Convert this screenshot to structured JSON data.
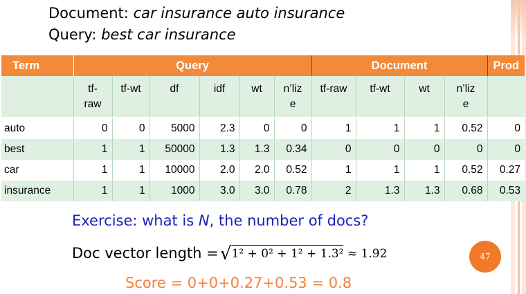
{
  "header": {
    "doc_label": "Document:",
    "doc_text": "car insurance auto insurance",
    "query_label": "Query:",
    "query_text": "best car insurance"
  },
  "table": {
    "groups": {
      "term": "Term",
      "query": "Query",
      "document": "Document",
      "prod": "Prod"
    },
    "subheaders": {
      "q_tf_raw": "tf-\nraw",
      "q_tf_wt": "tf-wt",
      "q_df": "df",
      "q_idf": "idf",
      "q_wt": "wt",
      "q_nlize": "n’liz\ne",
      "d_tf_raw": "tf-raw",
      "d_tf_wt": "tf-wt",
      "d_wt": "wt",
      "d_nlize": "n’liz\ne"
    },
    "rows": [
      {
        "term": "auto",
        "q_tf_raw": "0",
        "q_tf_wt": "0",
        "q_df": "5000",
        "q_idf": "2.3",
        "q_wt": "0",
        "q_nlize": "0",
        "d_tf_raw": "1",
        "d_tf_wt": "1",
        "d_wt": "1",
        "d_nlize": "0.52",
        "prod": "0"
      },
      {
        "term": "best",
        "q_tf_raw": "1",
        "q_tf_wt": "1",
        "q_df": "50000",
        "q_idf": "1.3",
        "q_wt": "1.3",
        "q_nlize": "0.34",
        "d_tf_raw": "0",
        "d_tf_wt": "0",
        "d_wt": "0",
        "d_nlize": "0",
        "prod": "0"
      },
      {
        "term": "car",
        "q_tf_raw": "1",
        "q_tf_wt": "1",
        "q_df": "10000",
        "q_idf": "2.0",
        "q_wt": "2.0",
        "q_nlize": "0.52",
        "d_tf_raw": "1",
        "d_tf_wt": "1",
        "d_wt": "1",
        "d_nlize": "0.52",
        "prod": "0.27"
      },
      {
        "term": "insurance",
        "q_tf_raw": "1",
        "q_tf_wt": "1",
        "q_df": "1000",
        "q_idf": "3.0",
        "q_wt": "3.0",
        "q_nlize": "0.78",
        "d_tf_raw": "2",
        "d_tf_wt": "1.3",
        "d_wt": "1.3",
        "d_nlize": "0.68",
        "prod": "0.53"
      }
    ]
  },
  "exercise": {
    "prefix": "Exercise: what is ",
    "var": "N",
    "suffix": ", the number of docs?"
  },
  "doc_vector": {
    "label": "Doc vector length =",
    "formula": "1² + 0² + 1² + 1.3²",
    "approx": "≈ 1.92"
  },
  "score": "Score = 0+0+0.27+0.53 = 0.8",
  "page_number": "47",
  "colors": {
    "header_orange": "#f28a3a",
    "row_green": "#dff0e2",
    "exercise_blue": "#1a22b8",
    "score_orange": "#f4813a"
  }
}
